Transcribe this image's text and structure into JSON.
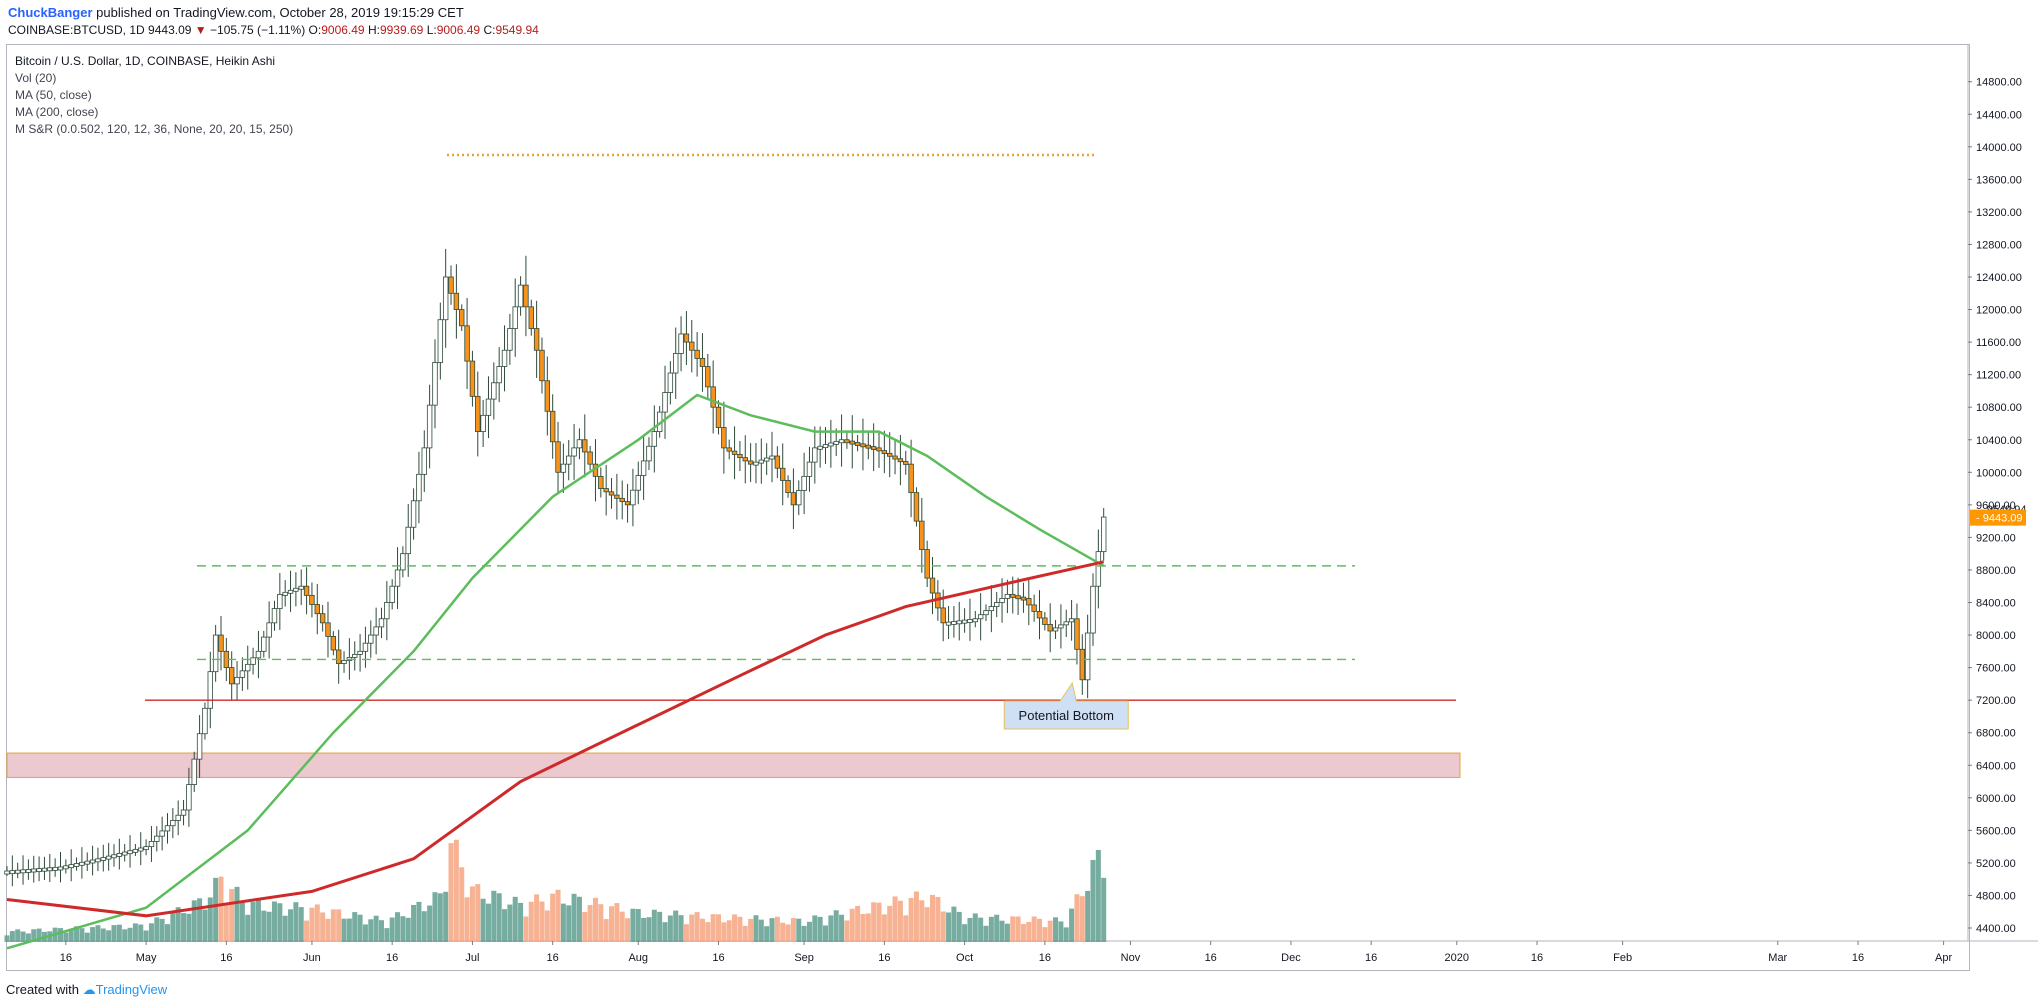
{
  "header": {
    "user": "ChuckBanger",
    "published_text": "published on TradingView.com, October 28, 2019 19:15:29 CET",
    "symbol": "COINBASE:BTCUSD, 1D",
    "last": "9443.09",
    "change_arrow": "▼",
    "change": "−105.75 (−1.11%)",
    "o_label": "O:",
    "o_value": "9006.49",
    "h_label": "H:",
    "h_value": "9939.69",
    "l_label": "L:",
    "l_value": "9006.49",
    "c_label": "C:",
    "c_value": "9549.94"
  },
  "legend": {
    "title": "Bitcoin / U.S. Dollar, 1D, COINBASE, Heikin Ashi",
    "vol": "Vol (20)",
    "ma50": "MA (50, close)",
    "ma200": "MA (200, close)",
    "msr": "M S&R (0.0.502, 120, 12, 36, None, 20, 20, 15, 250)"
  },
  "footer": {
    "prefix": "Created with",
    "brand": "TradingView"
  },
  "colors": {
    "up_candle": "#ffffff",
    "up_border": "#2e4a3a",
    "down_candle": "#f7931a",
    "ma50": "#5cbd5c",
    "ma200": "#cf2a2a",
    "vol_up": "#5f9e8f",
    "vol_down": "#f4a57f",
    "zone_fill": "#ecc8cf",
    "zone_border": "#e6a23c",
    "support_line": "#cf2a2a",
    "level_dash": "#5cbd5c",
    "last_price_badge": "#ff9800",
    "callout_bg": "#cfe0f5"
  },
  "chart_data": {
    "type": "candlestick",
    "title": "Bitcoin / U.S. Dollar, 1D, COINBASE, Heikin Ashi",
    "ylim": [
      4000,
      14900
    ],
    "y_ticks": [
      4400,
      4800,
      5200,
      5600,
      6000,
      6400,
      6800,
      7200,
      7600,
      8000,
      8400,
      8800,
      9200,
      9600,
      10000,
      10400,
      10800,
      11200,
      11600,
      12000,
      12400,
      12800,
      13200,
      13600,
      14000,
      14400,
      14800
    ],
    "y_tick_labels": [
      "4400.00",
      "4800.00",
      "5200.00",
      "5600.00",
      "6000.00",
      "6400.00",
      "6800.00",
      "7200.00",
      "7600.00",
      "8000.00",
      "8400.00",
      "8800.00",
      "9200.00",
      "9600.00",
      "10000.00",
      "10400.00",
      "10800.00",
      "11200.00",
      "11600.00",
      "12000.00",
      "12400.00",
      "12800.00",
      "13200.00",
      "13600.00",
      "14000.00",
      "14400.00",
      "14800.00"
    ],
    "x_labels": [
      {
        "label": "16",
        "date": "2019-04-16"
      },
      {
        "label": "May",
        "date": "2019-05-01"
      },
      {
        "label": "16",
        "date": "2019-05-16"
      },
      {
        "label": "Jun",
        "date": "2019-06-01"
      },
      {
        "label": "16",
        "date": "2019-06-16"
      },
      {
        "label": "Jul",
        "date": "2019-07-01"
      },
      {
        "label": "16",
        "date": "2019-07-16"
      },
      {
        "label": "Aug",
        "date": "2019-08-01"
      },
      {
        "label": "16",
        "date": "2019-08-16"
      },
      {
        "label": "Sep",
        "date": "2019-09-01"
      },
      {
        "label": "16",
        "date": "2019-09-16"
      },
      {
        "label": "Oct",
        "date": "2019-10-01"
      },
      {
        "label": "16",
        "date": "2019-10-16"
      },
      {
        "label": "Nov",
        "date": "2019-11-01"
      },
      {
        "label": "16",
        "date": "2019-11-16"
      },
      {
        "label": "Dec",
        "date": "2019-12-01"
      },
      {
        "label": "16",
        "date": "2019-12-16"
      },
      {
        "label": "2020",
        "date": "2020-01-01"
      },
      {
        "label": "16",
        "date": "2020-01-16"
      },
      {
        "label": "Feb",
        "date": "2020-02-01"
      },
      {
        "label": "Mar",
        "date": "2020-03-01"
      },
      {
        "label": "16",
        "date": "2020-03-16"
      },
      {
        "label": "Apr",
        "date": "2020-04-01"
      }
    ],
    "x_range": [
      "2019-04-05",
      "2020-04-05"
    ],
    "price_path": [
      [
        "2019-04-05",
        5100
      ],
      [
        "2019-04-15",
        5150
      ],
      [
        "2019-04-22",
        5250
      ],
      [
        "2019-05-01",
        5400
      ],
      [
        "2019-05-08",
        5850
      ],
      [
        "2019-05-12",
        7100
      ],
      [
        "2019-05-14",
        8000
      ],
      [
        "2019-05-17",
        7400
      ],
      [
        "2019-05-22",
        7800
      ],
      [
        "2019-05-26",
        8500
      ],
      [
        "2019-05-30",
        8600
      ],
      [
        "2019-06-03",
        8150
      ],
      [
        "2019-06-06",
        7650
      ],
      [
        "2019-06-10",
        7800
      ],
      [
        "2019-06-14",
        8200
      ],
      [
        "2019-06-18",
        9000
      ],
      [
        "2019-06-22",
        10300
      ],
      [
        "2019-06-26",
        12400
      ],
      [
        "2019-06-29",
        11800
      ],
      [
        "2019-07-02",
        10500
      ],
      [
        "2019-07-07",
        11500
      ],
      [
        "2019-07-10",
        12300
      ],
      [
        "2019-07-13",
        11500
      ],
      [
        "2019-07-17",
        10000
      ],
      [
        "2019-07-21",
        10400
      ],
      [
        "2019-07-25",
        9800
      ],
      [
        "2019-07-30",
        9600
      ],
      [
        "2019-08-04",
        10500
      ],
      [
        "2019-08-09",
        11700
      ],
      [
        "2019-08-13",
        11300
      ],
      [
        "2019-08-17",
        10300
      ],
      [
        "2019-08-22",
        10100
      ],
      [
        "2019-08-26",
        10200
      ],
      [
        "2019-08-30",
        9600
      ],
      [
        "2019-09-03",
        10300
      ],
      [
        "2019-09-08",
        10400
      ],
      [
        "2019-09-14",
        10300
      ],
      [
        "2019-09-20",
        10100
      ],
      [
        "2019-09-24",
        8700
      ],
      [
        "2019-09-27",
        8150
      ],
      [
        "2019-10-03",
        8200
      ],
      [
        "2019-10-09",
        8500
      ],
      [
        "2019-10-12",
        8450
      ],
      [
        "2019-10-17",
        8050
      ],
      [
        "2019-10-21",
        8200
      ],
      [
        "2019-10-23",
        7450
      ],
      [
        "2019-10-25",
        8600
      ],
      [
        "2019-10-27",
        9450
      ]
    ],
    "ma50": [
      [
        "2019-04-05",
        4150
      ],
      [
        "2019-05-01",
        4650
      ],
      [
        "2019-05-20",
        5600
      ],
      [
        "2019-06-05",
        6800
      ],
      [
        "2019-06-20",
        7800
      ],
      [
        "2019-07-01",
        8700
      ],
      [
        "2019-07-16",
        9700
      ],
      [
        "2019-08-01",
        10400
      ],
      [
        "2019-08-12",
        10950
      ],
      [
        "2019-08-22",
        10700
      ],
      [
        "2019-09-03",
        10500
      ],
      [
        "2019-09-15",
        10500
      ],
      [
        "2019-09-24",
        10200
      ],
      [
        "2019-10-05",
        9700
      ],
      [
        "2019-10-15",
        9300
      ],
      [
        "2019-10-27",
        8850
      ]
    ],
    "ma200": [
      [
        "2019-04-05",
        4750
      ],
      [
        "2019-05-01",
        4550
      ],
      [
        "2019-06-01",
        4850
      ],
      [
        "2019-06-20",
        5250
      ],
      [
        "2019-07-10",
        6200
      ],
      [
        "2019-08-01",
        6900
      ],
      [
        "2019-08-20",
        7500
      ],
      [
        "2019-09-05",
        8000
      ],
      [
        "2019-09-20",
        8350
      ],
      [
        "2019-10-10",
        8650
      ],
      [
        "2019-10-27",
        8900
      ]
    ],
    "volume_path": [
      [
        "2019-04-05",
        0.05
      ],
      [
        "2019-05-01",
        0.08
      ],
      [
        "2019-05-12",
        0.2
      ],
      [
        "2019-05-15",
        0.3
      ],
      [
        "2019-05-20",
        0.18
      ],
      [
        "2019-06-01",
        0.16
      ],
      [
        "2019-06-15",
        0.1
      ],
      [
        "2019-06-25",
        0.22
      ],
      [
        "2019-06-27",
        0.48
      ],
      [
        "2019-07-01",
        0.25
      ],
      [
        "2019-07-10",
        0.18
      ],
      [
        "2019-07-17",
        0.22
      ],
      [
        "2019-08-01",
        0.14
      ],
      [
        "2019-08-15",
        0.12
      ],
      [
        "2019-09-01",
        0.1
      ],
      [
        "2019-09-24",
        0.22
      ],
      [
        "2019-10-01",
        0.12
      ],
      [
        "2019-10-20",
        0.1
      ],
      [
        "2019-10-26",
        0.4
      ]
    ],
    "zones": [
      {
        "from": 6250,
        "to": 6550
      }
    ],
    "horizontal_lines": [
      {
        "value": 7200,
        "style": "solid"
      },
      {
        "value": 8850,
        "style": "dashed"
      },
      {
        "value": 7700,
        "style": "dashed"
      },
      {
        "value": 13900,
        "style": "dotted"
      }
    ],
    "annotations": [
      "Potential Bottom"
    ],
    "price_labels": [
      {
        "value": 9549.94,
        "text": "9549.94"
      },
      {
        "value": 9443.09,
        "text": "9443.09"
      }
    ]
  }
}
